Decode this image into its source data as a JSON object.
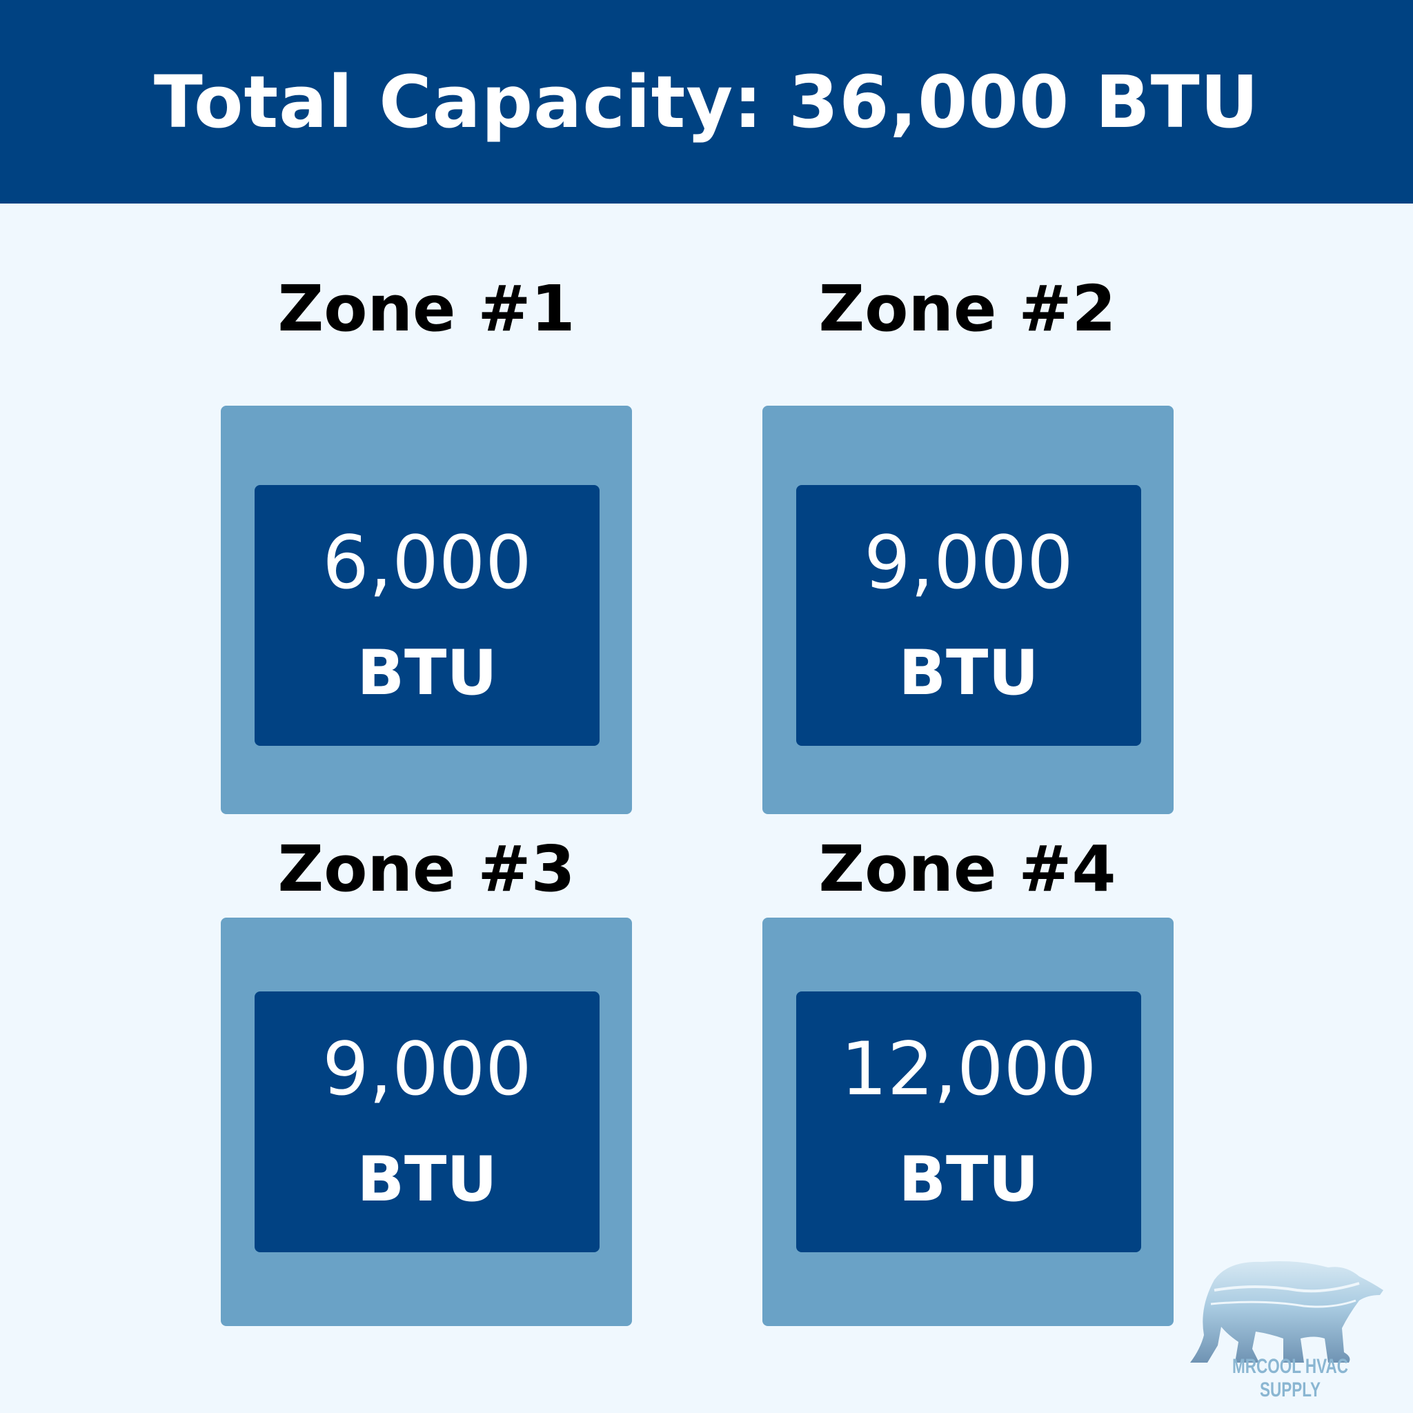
{
  "header": {
    "title": "Total Capacity: 36,000 BTU"
  },
  "zones": [
    {
      "label": "Zone #1",
      "value": "6,000",
      "unit": "BTU"
    },
    {
      "label": "Zone #2",
      "value": "9,000",
      "unit": "BTU"
    },
    {
      "label": "Zone #3",
      "value": "9,000",
      "unit": "BTU"
    },
    {
      "label": "Zone #4",
      "value": "12,000",
      "unit": "BTU"
    }
  ],
  "logo": {
    "text": "MRCOOL HVAC SUPPLY",
    "icon": "polar-bear-icon"
  },
  "colors": {
    "header": "#004282",
    "background": "#f0f8fe",
    "outer_box": "#6aa2c6",
    "inner_box": "#014283"
  }
}
